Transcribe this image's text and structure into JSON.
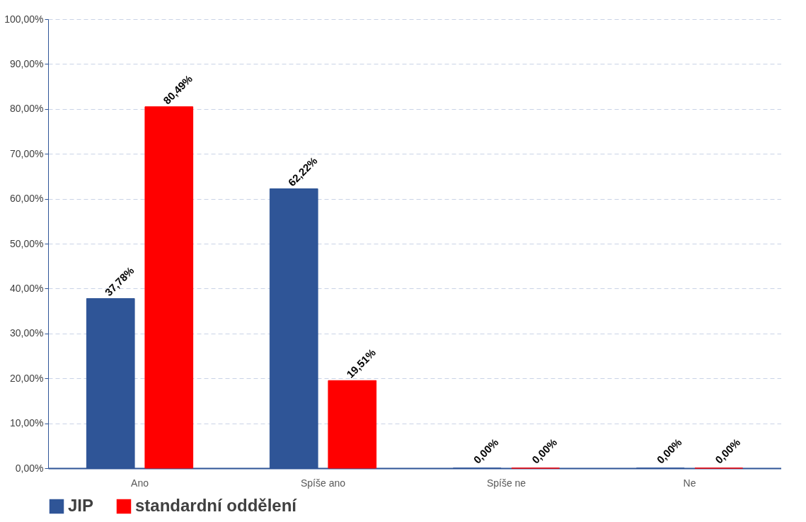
{
  "chart_data": {
    "type": "bar",
    "categories": [
      "Ano",
      "Spíše ano",
      "Spíše ne",
      "Ne"
    ],
    "series": [
      {
        "name": "JIP",
        "color": "#2f5597",
        "values": [
          37.78,
          62.22,
          0,
          0
        ],
        "value_labels": [
          "37,78%",
          "62,22%",
          "0,00%",
          "0,00%"
        ]
      },
      {
        "name": "standardní oddělení",
        "color": "#ff0000",
        "values": [
          80.49,
          19.51,
          0,
          0
        ],
        "value_labels": [
          "80,49%",
          "19,51%",
          "0,00%",
          "0,00%"
        ]
      }
    ],
    "ylim": [
      0,
      100
    ],
    "yticks": [
      {
        "value": 0,
        "label": "0,00%"
      },
      {
        "value": 10,
        "label": "10,00%"
      },
      {
        "value": 20,
        "label": "20,00%"
      },
      {
        "value": 30,
        "label": "30,00%"
      },
      {
        "value": 40,
        "label": "40,00%"
      },
      {
        "value": 50,
        "label": "50,00%"
      },
      {
        "value": 60,
        "label": "60,00%"
      },
      {
        "value": 70,
        "label": "70,00%"
      },
      {
        "value": 80,
        "label": "80,00%"
      },
      {
        "value": 90,
        "label": "90,00%"
      },
      {
        "value": 100,
        "label": "100,00%"
      }
    ],
    "grid": "y",
    "legend": "bottom"
  }
}
